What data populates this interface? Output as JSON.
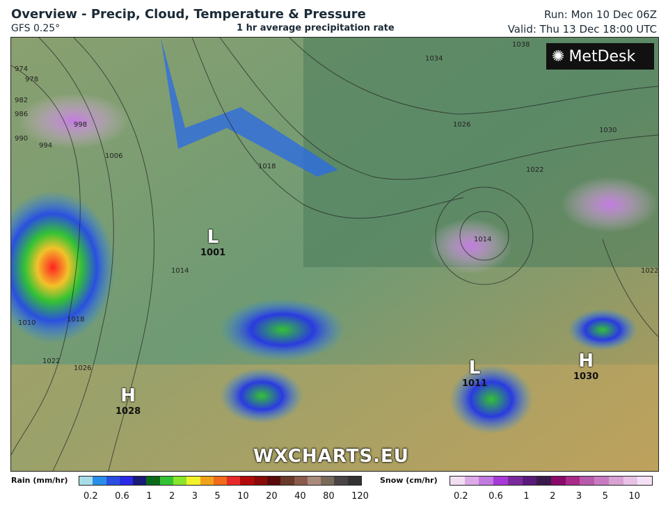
{
  "header": {
    "title": "Overview - Precip, Cloud, Temperature & Pressure",
    "model": "GFS 0.25°",
    "subtitle": "1 hr average precipitation rate",
    "run": "Run: Mon 10 Dec 06Z",
    "valid": "Valid: Thu 13 Dec 18:00 UTC"
  },
  "map": {
    "logo": "MetDesk",
    "watermark": "WXCHARTS.EU",
    "pressure_centres": [
      {
        "type": "H",
        "value": "1028"
      },
      {
        "type": "L",
        "value": "1001"
      },
      {
        "type": "L",
        "value": "1011"
      },
      {
        "type": "H",
        "value": "1030"
      }
    ],
    "isobar_labels": [
      "974",
      "978",
      "982",
      "986",
      "990",
      "994",
      "998",
      "1006",
      "1018",
      "1014",
      "1010",
      "1018",
      "1022",
      "1026",
      "1034",
      "1038",
      "1026",
      "1030",
      "1022",
      "1014",
      "1022"
    ]
  },
  "legend": {
    "rain": {
      "label": "Rain (mm/hr)",
      "ticks": [
        "0.2",
        "0.6",
        "1",
        "2",
        "3",
        "5",
        "10",
        "20",
        "40",
        "80",
        "120"
      ],
      "colors": [
        "#a8dde8",
        "#2a8de8",
        "#2a4fe0",
        "#2a2ae6",
        "#1a1a78",
        "#0a6a1a",
        "#34c234",
        "#8ae62a",
        "#f2f22a",
        "#f2a21a",
        "#f26a1a",
        "#e62a2a",
        "#b20a0a",
        "#8a0a0a",
        "#5a0a0a",
        "#6a3a2a",
        "#8a5a4a",
        "#aa8a7a",
        "#7a6a5a",
        "#4a4444",
        "#333333"
      ]
    },
    "snow": {
      "label": "Snow (cm/hr)",
      "ticks": [
        "0.2",
        "0.6",
        "1",
        "2",
        "3",
        "5",
        "10"
      ],
      "colors": [
        "#f2def2",
        "#dcaae6",
        "#c27ae0",
        "#a63ad6",
        "#7a2a9a",
        "#5a1a7a",
        "#3a1a4a",
        "#8a0a6a",
        "#aa2a8a",
        "#b85aaa",
        "#c87ac0",
        "#d8a2d2",
        "#e8c2e6",
        "#f4e2f4"
      ]
    }
  }
}
